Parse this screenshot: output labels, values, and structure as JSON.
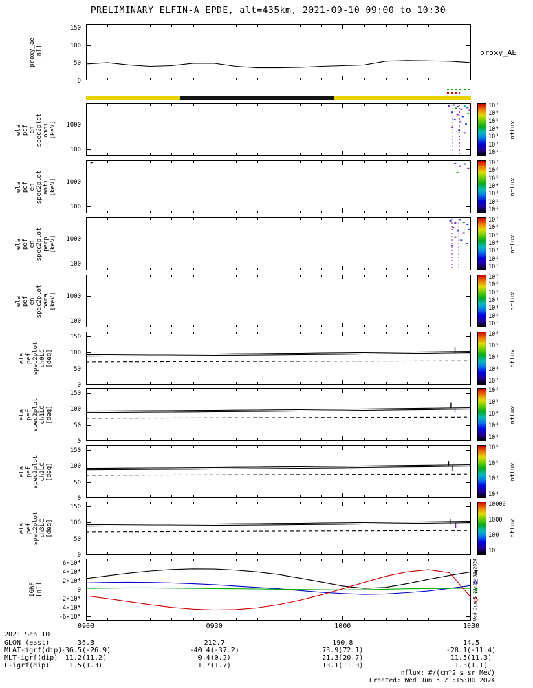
{
  "title": "PRELIMINARY ELFIN-A EPDE, alt=435km, 2021-09-10 09:00 to 10:30",
  "footnote_flux_units": "nflux: #/(cm^2 s sr MeV)",
  "footnote_created": "Created: Wed Jun 5 21:15:00 2024",
  "vertical_timestamp": "Wed Jun 5 21:15:00 2024",
  "time_axis": {
    "tick_labels": [
      "0900",
      "0930",
      "1000",
      "1030"
    ],
    "tick_minutes": [
      0,
      30,
      60,
      90
    ],
    "minutes_span": 90,
    "date_label": "2021 Sep 10",
    "start": "09:00",
    "end": "10:30"
  },
  "status_bar": {
    "segments": [
      {
        "color": "#e6d300",
        "from": 0.0,
        "to": 0.245
      },
      {
        "color": "#141414",
        "from": 0.245,
        "to": 0.645
      },
      {
        "color": "#e6d300",
        "from": 0.645,
        "to": 1.0
      }
    ],
    "flags": [
      {
        "color": "#00a000",
        "from": 0.937,
        "to": 1.0,
        "row": 0
      },
      {
        "color": "#dd0000",
        "from": 0.937,
        "to": 0.972,
        "row": 1
      }
    ]
  },
  "colorbar": {
    "stops": [
      "#cc0000",
      "#ee7700",
      "#dddd00",
      "#66cc00",
      "#00aa22",
      "#00bbbb",
      "#0077ee",
      "#0000dd",
      "#220099",
      "#000000"
    ],
    "unit_label": "nflux"
  },
  "legend_igrf": [
    {
      "label": "T",
      "color": "#000000"
    },
    {
      "label": "N",
      "color": "#0000cc"
    },
    {
      "label": "E",
      "color": "#00aa00"
    },
    {
      "label": "D",
      "color": "#cc0000"
    }
  ],
  "footer_rows": [
    {
      "label": "GLON (east)",
      "values": [
        "36.3",
        "212.7",
        "190.8",
        "14.5"
      ]
    },
    {
      "label": "MLAT-igrf(dip)",
      "values": [
        "-36.5(-26.9)",
        "-40.4(-37.2)",
        "73.9(72.1)",
        "-28.1(-11.4)"
      ]
    },
    {
      "label": "MLT-igrf(dip)",
      "values": [
        "11.2(11.2)",
        "0.4(0.2)",
        "21.3(20.7)",
        "11.5(11.3)"
      ]
    },
    {
      "label": "L-igrf(dip)",
      "values": [
        "1.5(1.3)",
        "1.7(1.7)",
        "13.1(11.3)",
        "1.3(1.1)"
      ]
    }
  ],
  "chart_data": [
    {
      "id": "proxy_ae",
      "type": "line",
      "panel_label_lines": [
        "proxy_ae",
        "[nT]"
      ],
      "right_label": "proxy_AE",
      "ylim": [
        0,
        160
      ],
      "yticks": [
        {
          "v": 0,
          "label": "0"
        },
        {
          "v": 50,
          "label": "50"
        },
        {
          "v": 100,
          "label": "100"
        },
        {
          "v": 150,
          "label": "150"
        }
      ],
      "x_minutes": [
        0,
        5,
        10,
        15,
        20,
        25,
        30,
        35,
        40,
        45,
        50,
        55,
        60,
        65,
        70,
        75,
        80,
        85,
        90
      ],
      "series": [
        {
          "name": "proxy_AE",
          "color": "#000000",
          "style": "solid",
          "values": [
            47,
            51,
            44,
            40,
            42,
            49,
            49,
            40,
            36,
            36,
            37,
            40,
            42,
            44,
            55,
            57,
            56,
            55,
            51
          ]
        }
      ]
    },
    {
      "id": "en_spec_omni",
      "type": "heatmap",
      "panel_label_lines": [
        "ela",
        "pef",
        "en",
        "spec2plot",
        "omni",
        "[keV]"
      ],
      "yscale": "log",
      "ylim": [
        55,
        6800
      ],
      "yticks": [
        {
          "v": 100,
          "label": "100"
        },
        {
          "v": 1000,
          "label": "1000"
        }
      ],
      "colorbar_tick_labels": [
        "10⁷",
        "10⁶",
        "10⁵",
        "10⁴",
        "10³",
        "10²",
        "10¹"
      ],
      "speckles": [
        [
          0.94,
          0.04,
          "#7722aa"
        ],
        [
          0.952,
          0.02,
          "#3344cc"
        ],
        [
          0.958,
          0.08,
          "#22aa22"
        ],
        [
          0.964,
          0.05,
          "#3344cc"
        ],
        [
          0.972,
          0.1,
          "#7722aa"
        ],
        [
          0.98,
          0.04,
          "#00aaaa"
        ],
        [
          0.988,
          0.07,
          "#3344cc"
        ],
        [
          0.994,
          0.12,
          "#7722aa"
        ],
        [
          0.948,
          0.16,
          "#3344cc"
        ],
        [
          0.962,
          0.2,
          "#7722aa"
        ],
        [
          0.976,
          0.24,
          "#3344cc"
        ],
        [
          0.99,
          0.18,
          "#22aa22"
        ],
        [
          0.955,
          0.3,
          "#3344cc"
        ],
        [
          0.97,
          0.34,
          "#7722aa"
        ],
        [
          0.984,
          0.38,
          "#3344cc"
        ],
        [
          0.948,
          0.44,
          "#7722aa"
        ],
        [
          0.966,
          0.5,
          "#3344cc"
        ],
        [
          0.98,
          0.55,
          "#7722aa"
        ]
      ],
      "dashed_vlines": [
        0.952,
        0.97
      ]
    },
    {
      "id": "en_spec_anti",
      "type": "heatmap",
      "panel_label_lines": [
        "ela",
        "pef",
        "en",
        "spec2plot",
        "anti",
        "[keV]"
      ],
      "yscale": "log",
      "ylim": [
        55,
        6800
      ],
      "yticks": [
        {
          "v": 100,
          "label": "100"
        },
        {
          "v": 1000,
          "label": "1000"
        }
      ],
      "colorbar_tick_labels": [
        "10⁷",
        "10⁶",
        "10⁵",
        "10⁴",
        "10³",
        "10²",
        "10¹"
      ],
      "speckles": [
        [
          0.012,
          0.03,
          "#000000"
        ],
        [
          0.956,
          0.05,
          "#3344cc"
        ],
        [
          0.968,
          0.1,
          "#7722aa"
        ],
        [
          0.98,
          0.06,
          "#3344cc"
        ],
        [
          0.99,
          0.14,
          "#7722aa"
        ],
        [
          0.962,
          0.22,
          "#22aa22"
        ]
      ],
      "dashed_vlines": []
    },
    {
      "id": "en_spec_perp",
      "type": "heatmap",
      "panel_label_lines": [
        "ela",
        "pef",
        "en",
        "spec2plot",
        "perp",
        "[keV]"
      ],
      "yscale": "log",
      "ylim": [
        55,
        6800
      ],
      "yticks": [
        {
          "v": 100,
          "label": "100"
        },
        {
          "v": 1000,
          "label": "1000"
        }
      ],
      "colorbar_tick_labels": [
        "10⁷",
        "10⁶",
        "10⁵",
        "10⁴",
        "10³",
        "10²",
        "10¹"
      ],
      "speckles": [
        [
          0.944,
          0.05,
          "#3344cc"
        ],
        [
          0.956,
          0.09,
          "#7722aa"
        ],
        [
          0.968,
          0.03,
          "#3344cc"
        ],
        [
          0.978,
          0.08,
          "#22aa22"
        ],
        [
          0.988,
          0.12,
          "#3344cc"
        ],
        [
          0.95,
          0.18,
          "#7722aa"
        ],
        [
          0.964,
          0.24,
          "#3344cc"
        ],
        [
          0.978,
          0.28,
          "#7722aa"
        ],
        [
          0.992,
          0.22,
          "#3344cc"
        ],
        [
          0.956,
          0.36,
          "#7722aa"
        ],
        [
          0.972,
          0.42,
          "#3344cc"
        ],
        [
          0.986,
          0.48,
          "#7722aa"
        ],
        [
          0.948,
          0.52,
          "#3344cc"
        ]
      ],
      "dashed_vlines": [
        0.95,
        0.968
      ]
    },
    {
      "id": "en_spec_para",
      "type": "heatmap",
      "panel_label_lines": [
        "ela",
        "pef",
        "en",
        "spec2plot",
        "para",
        "[keV]"
      ],
      "yscale": "log",
      "ylim": [
        55,
        6800
      ],
      "yticks": [
        {
          "v": 100,
          "label": "100"
        },
        {
          "v": 1000,
          "label": "1000"
        }
      ],
      "colorbar_tick_labels": [
        "10⁷",
        "10⁶",
        "10⁵",
        "10⁴",
        "10³",
        "10²",
        "10¹"
      ],
      "speckles": [],
      "dashed_vlines": []
    },
    {
      "id": "pa_ch0lc",
      "type": "line",
      "panel_label_lines": [
        "ela",
        "pef",
        "spec2plot",
        "ch0LC",
        "[deg]"
      ],
      "ylim": [
        0,
        165
      ],
      "yticks": [
        {
          "v": 0,
          "label": "0"
        },
        {
          "v": 50,
          "label": "50"
        },
        {
          "v": 100,
          "label": "100"
        },
        {
          "v": 150,
          "label": "150"
        }
      ],
      "colorbar_tick_labels": [
        "10⁶",
        "10⁵",
        "10⁴",
        "10³",
        "10²"
      ],
      "x_minutes": [
        0,
        5,
        10,
        15,
        20,
        25,
        30,
        35,
        40,
        45,
        50,
        55,
        60,
        65,
        70,
        75,
        80,
        85,
        90
      ],
      "series": [
        {
          "name": "loss-cone-upper",
          "color": "#000000",
          "style": "solid",
          "values": [
            93,
            93.4,
            93.8,
            94.2,
            94.6,
            95,
            95.4,
            95.9,
            96.4,
            97,
            97.6,
            98.3,
            99,
            99.8,
            100.6,
            101.4,
            102.2,
            103,
            103.8
          ]
        },
        {
          "name": "loss-cone-lower",
          "color": "#000000",
          "style": "solid",
          "values": [
            88.5,
            88.9,
            89.3,
            89.7,
            90.1,
            90.5,
            91,
            91.5,
            92,
            92.6,
            93.2,
            93.9,
            94.6,
            95.4,
            96.2,
            97,
            97.8,
            98.6,
            99.4
          ]
        },
        {
          "name": "anti-loss-cone",
          "color": "#000000",
          "style": "dashed",
          "values": [
            71,
            71.2,
            71.4,
            71.6,
            71.8,
            72,
            72.2,
            72.4,
            72.6,
            72.8,
            73,
            73.2,
            73.4,
            73.6,
            73.8,
            74,
            74.2,
            74.4,
            74.6
          ]
        }
      ],
      "marks": [
        [
          0.958,
          0.3,
          "#000000"
        ]
      ]
    },
    {
      "id": "pa_ch1lc",
      "type": "line",
      "series_ref": "pa_ch0lc",
      "panel_label_lines": [
        "ela",
        "pef",
        "spec2plot",
        "ch1LC",
        "[deg]"
      ],
      "ylim": [
        0,
        165
      ],
      "yticks": [
        {
          "v": 0,
          "label": "0"
        },
        {
          "v": 50,
          "label": "50"
        },
        {
          "v": 100,
          "label": "100"
        },
        {
          "v": 150,
          "label": "150"
        }
      ],
      "colorbar_tick_labels": [
        "10⁶",
        "10⁵",
        "10⁴",
        "10³",
        "10²"
      ],
      "marks": [
        [
          0.948,
          0.28,
          "#000000"
        ],
        [
          0.958,
          0.36,
          "#7722aa"
        ]
      ]
    },
    {
      "id": "pa_ch2lc",
      "type": "line",
      "series_ref": "pa_ch0lc",
      "panel_label_lines": [
        "ela",
        "pef",
        "spec2plot",
        "ch2LC",
        "[deg]"
      ],
      "ylim": [
        0,
        165
      ],
      "yticks": [
        {
          "v": 0,
          "label": "0"
        },
        {
          "v": 50,
          "label": "50"
        },
        {
          "v": 100,
          "label": "100"
        },
        {
          "v": 150,
          "label": "150"
        }
      ],
      "colorbar_tick_labels": [
        "10⁶",
        "10⁵",
        "10⁴",
        "10³"
      ],
      "marks": [
        [
          0.942,
          0.3,
          "#000000"
        ],
        [
          0.952,
          0.38,
          "#000000"
        ]
      ]
    },
    {
      "id": "pa_ch3lc",
      "type": "line",
      "series_ref": "pa_ch0lc",
      "panel_label_lines": [
        "ela",
        "pef",
        "spec2plot",
        "ch3LC",
        "[deg]"
      ],
      "ylim": [
        0,
        165
      ],
      "yticks": [
        {
          "v": 0,
          "label": "0"
        },
        {
          "v": 50,
          "label": "50"
        },
        {
          "v": 100,
          "label": "100"
        },
        {
          "v": 150,
          "label": "150"
        }
      ],
      "colorbar_tick_labels": [
        "10000",
        "1000",
        "100",
        "10"
      ],
      "marks": [
        [
          0.946,
          0.33,
          "#000000"
        ],
        [
          0.96,
          0.4,
          "#7722aa"
        ]
      ]
    },
    {
      "id": "igrf",
      "type": "line",
      "panel_label_lines": [
        "IGRF",
        "[nT]"
      ],
      "ylim": [
        -70000,
        70000
      ],
      "yticks": [
        {
          "v": 60000,
          "label": "6×10⁴"
        },
        {
          "v": 40000,
          "label": "4×10⁴"
        },
        {
          "v": 20000,
          "label": "2×10⁴"
        },
        {
          "v": 0,
          "label": "0"
        },
        {
          "v": -20000,
          "label": "-2×10⁴"
        },
        {
          "v": -40000,
          "label": "-4×10⁴"
        },
        {
          "v": -60000,
          "label": "-6×10⁴"
        }
      ],
      "x_minutes": [
        0,
        5,
        10,
        15,
        20,
        25,
        30,
        35,
        40,
        45,
        50,
        55,
        60,
        65,
        70,
        75,
        80,
        85,
        90
      ],
      "series": [
        {
          "name": "T",
          "color": "#000000",
          "style": "solid",
          "values": [
            25000,
            31000,
            37000,
            42000,
            45500,
            47000,
            46500,
            44000,
            40000,
            34000,
            26000,
            17000,
            8000,
            3000,
            5000,
            13000,
            23000,
            32000,
            40000
          ]
        },
        {
          "name": "N",
          "color": "#0000cc",
          "style": "solid",
          "values": [
            15000,
            16000,
            16500,
            16000,
            15000,
            13000,
            11000,
            8000,
            5000,
            2000,
            -2000,
            -6000,
            -9000,
            -11000,
            -10000,
            -7000,
            -3000,
            3000,
            9000
          ]
        },
        {
          "name": "E",
          "color": "#00aa00",
          "style": "solid",
          "values": [
            3000,
            3500,
            4000,
            4000,
            3500,
            3000,
            2500,
            2000,
            1500,
            1000,
            500,
            0,
            -500,
            0,
            1000,
            2000,
            2500,
            3000,
            3000
          ]
        },
        {
          "name": "D",
          "color": "#cc0000",
          "style": "solid",
          "values": [
            -14000,
            -20000,
            -27000,
            -34000,
            -40000,
            -44000,
            -46000,
            -45000,
            -41000,
            -34000,
            -24000,
            -12000,
            2000,
            16000,
            30000,
            40000,
            45000,
            38000,
            -18000
          ]
        }
      ]
    }
  ]
}
